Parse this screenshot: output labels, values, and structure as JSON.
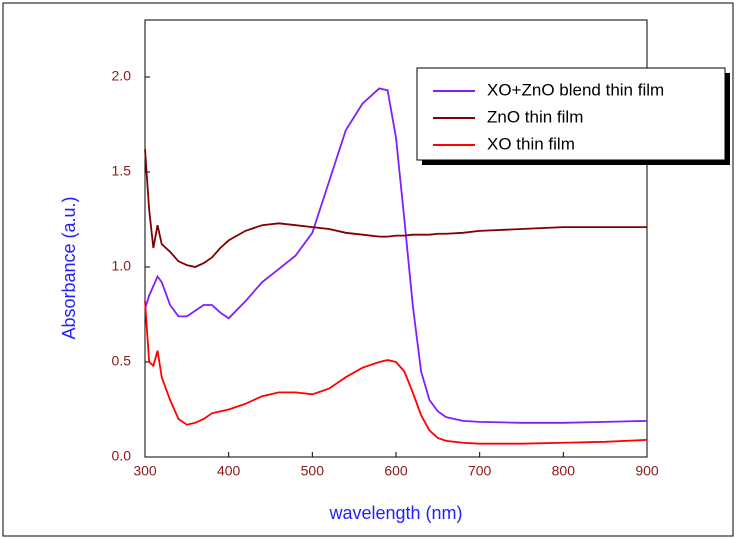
{
  "chart_data": {
    "type": "line",
    "x_label": "wavelength (nm)",
    "y_label": "Absorbance (a.u.)",
    "x": [
      300,
      305,
      310,
      315,
      320,
      330,
      340,
      350,
      360,
      370,
      380,
      390,
      400,
      420,
      440,
      460,
      480,
      500,
      520,
      540,
      560,
      580,
      590,
      600,
      610,
      620,
      630,
      640,
      650,
      660,
      680,
      700,
      750,
      800,
      850,
      900
    ],
    "series": [
      {
        "name": "XO+ZnO blend thin film",
        "color": "#7f1fff",
        "values": [
          0.78,
          0.85,
          0.9,
          0.95,
          0.92,
          0.8,
          0.74,
          0.74,
          0.77,
          0.8,
          0.8,
          0.76,
          0.73,
          0.82,
          0.92,
          0.99,
          1.06,
          1.18,
          1.45,
          1.72,
          1.86,
          1.94,
          1.93,
          1.68,
          1.25,
          0.8,
          0.45,
          0.3,
          0.24,
          0.21,
          0.19,
          0.185,
          0.18,
          0.18,
          0.185,
          0.19
        ]
      },
      {
        "name": "ZnO thin film",
        "color": "#800000",
        "values": [
          1.62,
          1.3,
          1.1,
          1.22,
          1.12,
          1.08,
          1.03,
          1.01,
          1.0,
          1.02,
          1.05,
          1.1,
          1.14,
          1.19,
          1.22,
          1.23,
          1.22,
          1.21,
          1.2,
          1.18,
          1.17,
          1.16,
          1.16,
          1.165,
          1.165,
          1.17,
          1.17,
          1.17,
          1.175,
          1.175,
          1.18,
          1.19,
          1.2,
          1.21,
          1.21,
          1.21
        ]
      },
      {
        "name": "XO thin film",
        "color": "#ff0000",
        "values": [
          0.82,
          0.5,
          0.48,
          0.56,
          0.42,
          0.3,
          0.2,
          0.17,
          0.18,
          0.2,
          0.23,
          0.24,
          0.25,
          0.28,
          0.32,
          0.34,
          0.34,
          0.33,
          0.36,
          0.42,
          0.47,
          0.5,
          0.51,
          0.5,
          0.45,
          0.34,
          0.22,
          0.14,
          0.1,
          0.085,
          0.075,
          0.07,
          0.07,
          0.075,
          0.08,
          0.09
        ]
      }
    ],
    "xlim": [
      300,
      900
    ],
    "xticks": [
      300,
      400,
      500,
      600,
      700,
      800,
      900
    ],
    "ylim": [
      0,
      2.3
    ],
    "yticks": [
      {
        "value": 0,
        "label": "0.0"
      },
      0.5,
      {
        "value": 1,
        "label": "1.0"
      },
      1.5,
      {
        "value": 2,
        "label": "2.0"
      }
    ],
    "grid": false,
    "legend": "upper right"
  }
}
